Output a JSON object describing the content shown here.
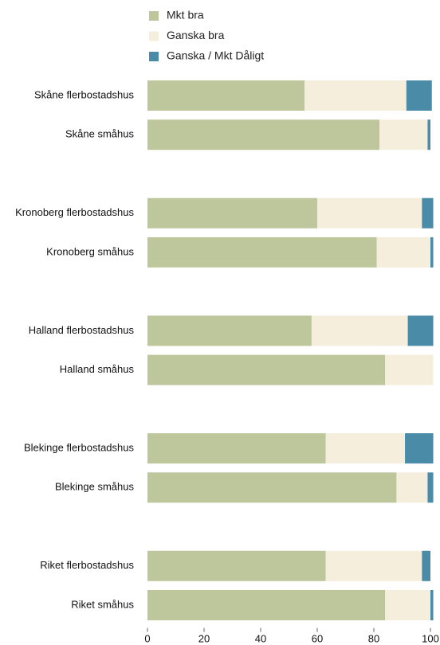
{
  "chart_data": {
    "type": "stacked-barh",
    "categories": [
      "Skåne flerbostadshus",
      "Skåne småhus",
      null,
      "Kronoberg flerbostadshus",
      "Kronoberg småhus",
      null,
      "Halland flerbostadshus",
      "Halland småhus",
      null,
      "Blekinge flerbostadshus",
      "Blekinge småhus",
      null,
      "Riket flerbostadshus",
      "Riket småhus"
    ],
    "series": [
      {
        "name": "Mkt bra",
        "color": "#bdc79b",
        "values": [
          55.5,
          82,
          null,
          60,
          81,
          null,
          58,
          84,
          null,
          63,
          88,
          null,
          63,
          84
        ]
      },
      {
        "name": "Ganska bra",
        "color": "#f5eedc",
        "values": [
          36,
          17,
          null,
          37,
          19,
          null,
          34,
          17,
          null,
          28,
          11,
          null,
          34,
          16
        ]
      },
      {
        "name": "Ganska / Mkt Dåligt",
        "color": "#4a8ca8",
        "values": [
          9,
          1,
          null,
          4,
          1,
          null,
          9,
          0,
          null,
          10,
          2,
          null,
          3,
          1
        ]
      }
    ],
    "xlim": [
      0,
      100
    ],
    "xticks": [
      0,
      20,
      40,
      60,
      80,
      100
    ],
    "legend": "top"
  }
}
